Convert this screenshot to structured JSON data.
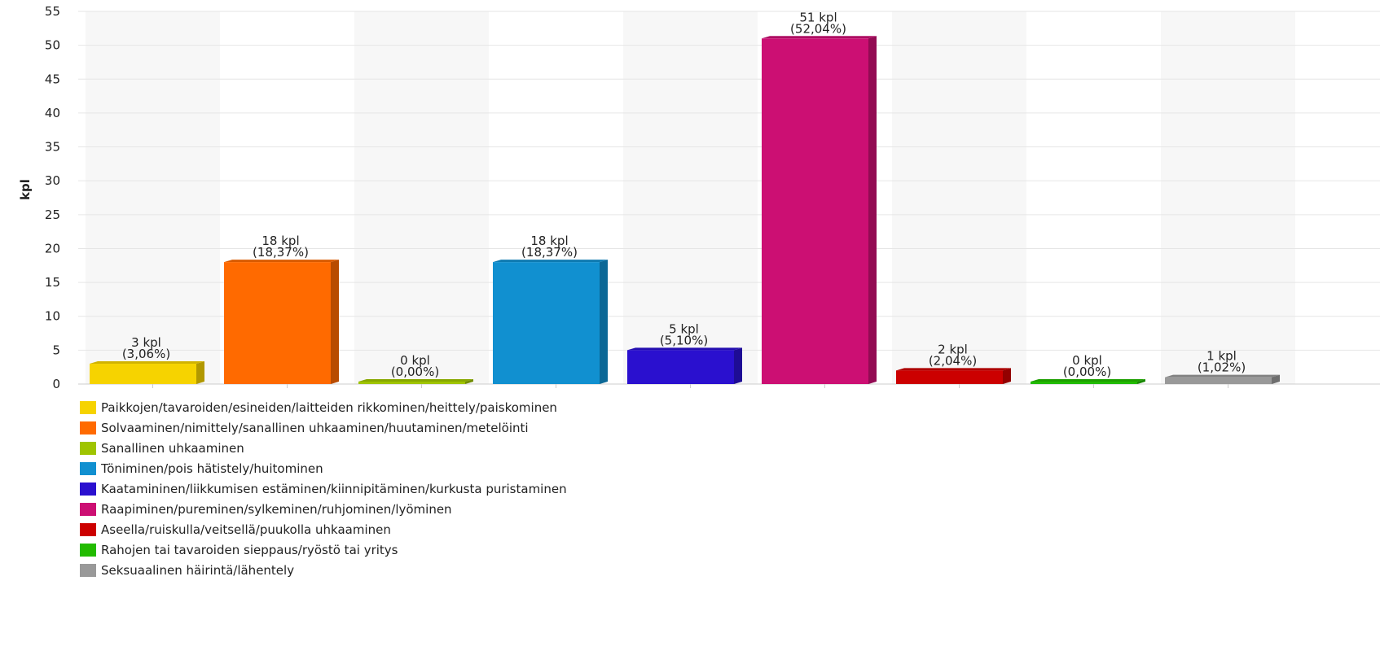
{
  "chart_data": {
    "type": "bar",
    "title": "",
    "xlabel": "",
    "ylabel": "kpl",
    "ylim": [
      0,
      55
    ],
    "yticks": [
      "0",
      "5",
      "10",
      "15",
      "20",
      "25",
      "30",
      "35",
      "40",
      "45",
      "50",
      "55"
    ],
    "grid": "horizontal",
    "legend_position": "bottom-left",
    "categories": [
      "Paikkojen/tavaroiden/esineiden/laitteiden rikkominen/heittely/paiskominen",
      "Solvaaminen/nimittely/sanallinen uhkaaminen/huutaminen/metelöinti",
      "Sanallinen uhkaaminen",
      "Töniminen/pois hätistely/huitominen",
      "Kaatamininen/liikkumisen estäminen/kiinnipitäminen/kurkusta puristaminen",
      "Raapiminen/pureminen/sylkeminen/ruhjominen/lyöminen",
      "Aseella/ruiskulla/veitsellä/puukolla uhkaaminen",
      "Rahojen tai tavaroiden sieppaus/ryöstö tai yritys",
      "Seksuaalinen häirintä/lähentely"
    ],
    "values": [
      3,
      18,
      0,
      18,
      5,
      51,
      2,
      0,
      1
    ],
    "count_labels": [
      "3 kpl",
      "18 kpl",
      "0 kpl",
      "18 kpl",
      "5 kpl",
      "51 kpl",
      "2 kpl",
      "0 kpl",
      "1 kpl"
    ],
    "percent_labels": [
      "(3,06%)",
      "(18,37%)",
      "(0,00%)",
      "(18,37%)",
      "(5,10%)",
      "(52,04%)",
      "(2,04%)",
      "(0,00%)",
      "(1,02%)"
    ],
    "colors": [
      "#f6d300",
      "#ff6a00",
      "#9fc400",
      "#1190d0",
      "#2a10cf",
      "#cc0f73",
      "#cc0000",
      "#22bb00",
      "#999999"
    ]
  }
}
